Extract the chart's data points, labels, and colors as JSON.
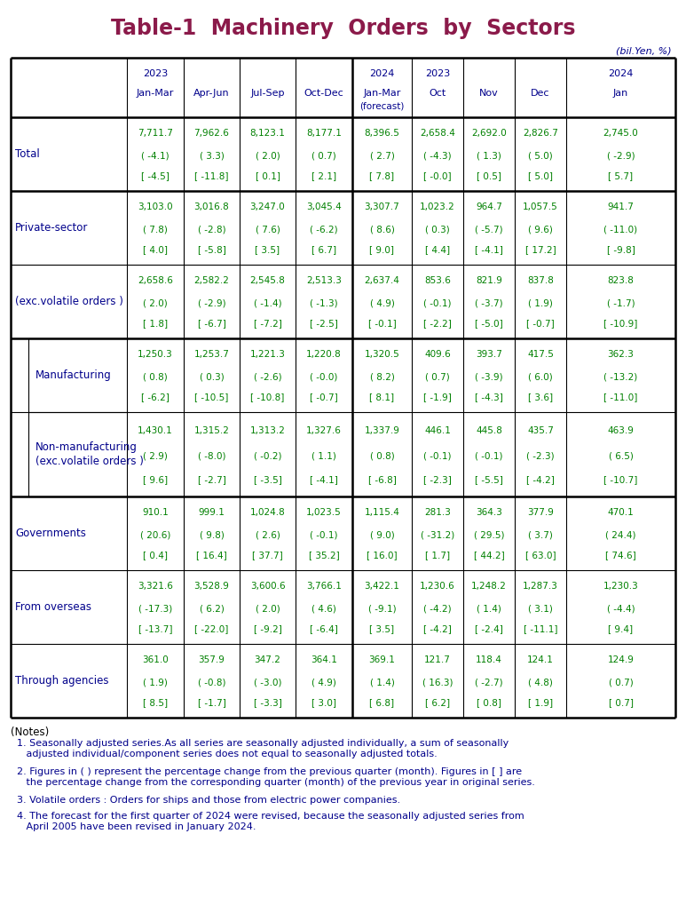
{
  "title": "Table-1  Machinery  Orders  by  Sectors",
  "title_color": "#8B1A4A",
  "subtitle": "(bil.Yen, %)",
  "subtitle_color": "#00008B",
  "background_color": "#FFFFFF",
  "header_color": "#00008B",
  "data_color_green": "#008000",
  "data_color_blue": "#00008B",
  "sections": [
    {
      "label": "Total",
      "label_color": "#00008B",
      "indent": false,
      "inner_box": false,
      "values": [
        [
          "7,711.7",
          "7,962.6",
          "8,123.1",
          "8,177.1",
          "8,396.5",
          "2,658.4",
          "2,692.0",
          "2,826.7",
          "2,745.0"
        ],
        [
          "( -4.1)",
          "( 3.3)",
          "( 2.0)",
          "( 0.7)",
          "( 2.7)",
          "( -4.3)",
          "( 1.3)",
          "( 5.0)",
          "( -2.9)"
        ],
        [
          "[ -4.5]",
          "[ -11.8]",
          "[ 0.1]",
          "[ 2.1]",
          "[ 7.8]",
          "[ -0.0]",
          "[ 0.5]",
          "[ 5.0]",
          "[ 5.7]"
        ]
      ],
      "thick_bottom": true
    },
    {
      "label": "Private-sector",
      "label_color": "#00008B",
      "indent": false,
      "inner_box": false,
      "values": [
        [
          "3,103.0",
          "3,016.8",
          "3,247.0",
          "3,045.4",
          "3,307.7",
          "1,023.2",
          "964.7",
          "1,057.5",
          "941.7"
        ],
        [
          "( 7.8)",
          "( -2.8)",
          "( 7.6)",
          "( -6.2)",
          "( 8.6)",
          "( 0.3)",
          "( -5.7)",
          "( 9.6)",
          "( -11.0)"
        ],
        [
          "[ 4.0]",
          "[ -5.8]",
          "[ 3.5]",
          "[ 6.7]",
          "[ 9.0]",
          "[ 4.4]",
          "[ -4.1]",
          "[ 17.2]",
          "[ -9.8]"
        ]
      ],
      "thick_bottom": false
    },
    {
      "label": "(exc.volatile orders )",
      "label_color": "#00008B",
      "indent": false,
      "inner_box": false,
      "values": [
        [
          "2,658.6",
          "2,582.2",
          "2,545.8",
          "2,513.3",
          "2,637.4",
          "853.6",
          "821.9",
          "837.8",
          "823.8"
        ],
        [
          "( 2.0)",
          "( -2.9)",
          "( -1.4)",
          "( -1.3)",
          "( 4.9)",
          "( -0.1)",
          "( -3.7)",
          "( 1.9)",
          "( -1.7)"
        ],
        [
          "[ 1.8]",
          "[ -6.7]",
          "[ -7.2]",
          "[ -2.5]",
          "[ -0.1]",
          "[ -2.2]",
          "[ -5.0]",
          "[ -0.7]",
          "[ -10.9]"
        ]
      ],
      "thick_bottom": true
    },
    {
      "label": "Manufacturing",
      "label_color": "#00008B",
      "indent": true,
      "inner_box": true,
      "values": [
        [
          "1,250.3",
          "1,253.7",
          "1,221.3",
          "1,220.8",
          "1,320.5",
          "409.6",
          "393.7",
          "417.5",
          "362.3"
        ],
        [
          "( 0.8)",
          "( 0.3)",
          "( -2.6)",
          "( -0.0)",
          "( 8.2)",
          "( 0.7)",
          "( -3.9)",
          "( 6.0)",
          "( -13.2)"
        ],
        [
          "[ -6.2]",
          "[ -10.5]",
          "[ -10.8]",
          "[ -0.7]",
          "[ 8.1]",
          "[ -1.9]",
          "[ -4.3]",
          "[ 3.6]",
          "[ -11.0]"
        ]
      ],
      "thick_bottom": false
    },
    {
      "label": "Non-manufacturing\n(exc.volatile orders )",
      "label_color": "#00008B",
      "indent": true,
      "inner_box": true,
      "values": [
        [
          "1,430.1",
          "1,315.2",
          "1,313.2",
          "1,327.6",
          "1,337.9",
          "446.1",
          "445.8",
          "435.7",
          "463.9"
        ],
        [
          "( 2.9)",
          "( -8.0)",
          "( -0.2)",
          "( 1.1)",
          "( 0.8)",
          "( -0.1)",
          "( -0.1)",
          "( -2.3)",
          "( 6.5)"
        ],
        [
          "[ 9.6]",
          "[ -2.7]",
          "[ -3.5]",
          "[ -4.1]",
          "[ -6.8]",
          "[ -2.3]",
          "[ -5.5]",
          "[ -4.2]",
          "[ -10.7]"
        ]
      ],
      "thick_bottom": true
    },
    {
      "label": "Governments",
      "label_color": "#00008B",
      "indent": false,
      "inner_box": false,
      "values": [
        [
          "910.1",
          "999.1",
          "1,024.8",
          "1,023.5",
          "1,115.4",
          "281.3",
          "364.3",
          "377.9",
          "470.1"
        ],
        [
          "( 20.6)",
          "( 9.8)",
          "( 2.6)",
          "( -0.1)",
          "( 9.0)",
          "( -31.2)",
          "( 29.5)",
          "( 3.7)",
          "( 24.4)"
        ],
        [
          "[ 0.4]",
          "[ 16.4]",
          "[ 37.7]",
          "[ 35.2]",
          "[ 16.0]",
          "[ 1.7]",
          "[ 44.2]",
          "[ 63.0]",
          "[ 74.6]"
        ]
      ],
      "thick_bottom": false
    },
    {
      "label": "From overseas",
      "label_color": "#00008B",
      "indent": false,
      "inner_box": false,
      "values": [
        [
          "3,321.6",
          "3,528.9",
          "3,600.6",
          "3,766.1",
          "3,422.1",
          "1,230.6",
          "1,248.2",
          "1,287.3",
          "1,230.3"
        ],
        [
          "( -17.3)",
          "( 6.2)",
          "( 2.0)",
          "( 4.6)",
          "( -9.1)",
          "( -4.2)",
          "( 1.4)",
          "( 3.1)",
          "( -4.4)"
        ],
        [
          "[ -13.7]",
          "[ -22.0]",
          "[ -9.2]",
          "[ -6.4]",
          "[ 3.5]",
          "[ -4.2]",
          "[ -2.4]",
          "[ -11.1]",
          "[ 9.4]"
        ]
      ],
      "thick_bottom": false
    },
    {
      "label": "Through agencies",
      "label_color": "#00008B",
      "indent": false,
      "inner_box": false,
      "values": [
        [
          "361.0",
          "357.9",
          "347.2",
          "364.1",
          "369.1",
          "121.7",
          "118.4",
          "124.1",
          "124.9"
        ],
        [
          "( 1.9)",
          "( -0.8)",
          "( -3.0)",
          "( 4.9)",
          "( 1.4)",
          "( 16.3)",
          "( -2.7)",
          "( 4.8)",
          "( 0.7)"
        ],
        [
          "[ 8.5]",
          "[ -1.7]",
          "[ -3.3]",
          "[ 3.0]",
          "[ 6.8]",
          "[ 6.2]",
          "[ 0.8]",
          "[ 1.9]",
          "[ 0.7]"
        ]
      ],
      "thick_bottom": false
    }
  ],
  "notes": [
    "(Notes)",
    "  1. Seasonally adjusted series.As all series are seasonally adjusted individually, a sum of seasonally\n     adjusted individual/component series does not equal to seasonally adjusted totals.",
    "  2. Figures in ( ) represent the percentage change from the previous quarter (month). Figures in [ ] are\n     the percentage change from the corresponding quarter (month) of the previous year in original series.",
    "  3. Volatile orders : Orders for ships and those from electric power companies.",
    "  4. The forecast for the first quarter of 2024 were revised, because the seasonally adjusted series from\n     April 2005 have been revised in January 2024."
  ],
  "notes_color": "#00008B"
}
